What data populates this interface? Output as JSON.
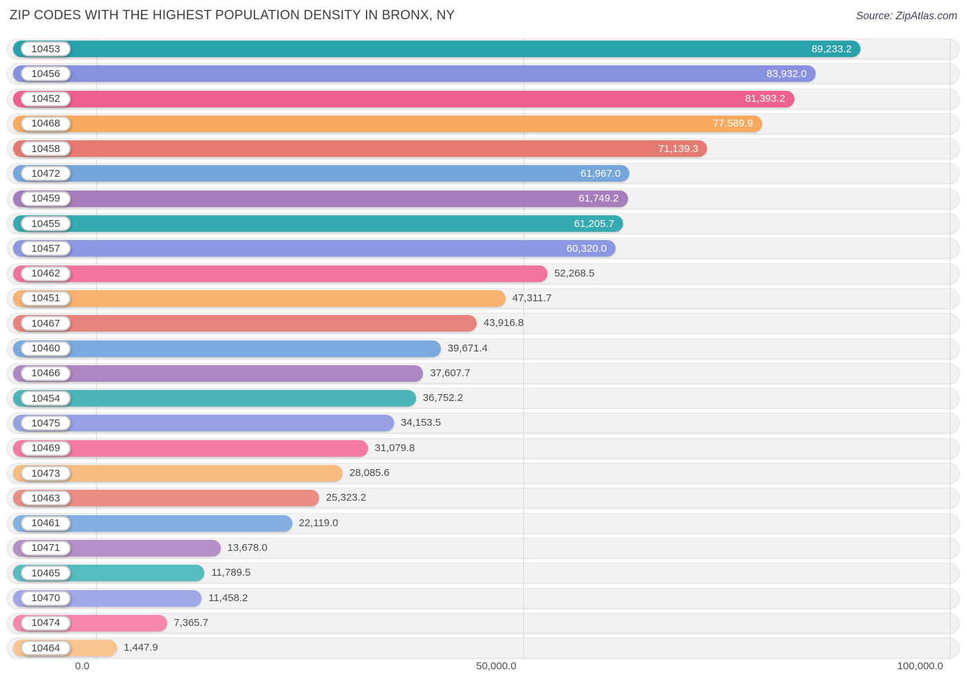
{
  "header": {
    "title": "ZIP CODES WITH THE HIGHEST POPULATION DENSITY IN BRONX, NY",
    "source": "Source: ZipAtlas.com"
  },
  "chart_data": {
    "type": "bar",
    "orientation": "horizontal",
    "title": "ZIP CODES WITH THE HIGHEST POPULATION DENSITY IN BRONX, NY",
    "xlabel": "",
    "ylabel": "",
    "xlim": [
      0,
      100000
    ],
    "grid": true,
    "legend": false,
    "x_ticks": {
      "labels": [
        "0.0",
        "50,000.0",
        "100,000.0"
      ],
      "values": [
        0,
        50000,
        100000
      ]
    },
    "categories": [
      "10453",
      "10456",
      "10452",
      "10468",
      "10458",
      "10472",
      "10459",
      "10455",
      "10457",
      "10462",
      "10451",
      "10467",
      "10460",
      "10466",
      "10454",
      "10475",
      "10469",
      "10473",
      "10463",
      "10461",
      "10471",
      "10465",
      "10470",
      "10474",
      "10464"
    ],
    "values": [
      89233.2,
      83932.0,
      81393.2,
      77589.9,
      71139.3,
      61967.0,
      61749.2,
      61205.7,
      60320.0,
      52268.5,
      47311.7,
      43916.8,
      39671.4,
      37607.7,
      36752.2,
      34153.5,
      31079.8,
      28085.6,
      25323.2,
      22119.0,
      13678.0,
      11789.5,
      11458.2,
      7365.7,
      1447.9
    ],
    "value_labels": [
      "89,233.2",
      "83,932.0",
      "81,393.2",
      "77,589.9",
      "71,139.3",
      "61,967.0",
      "61,749.2",
      "61,205.7",
      "60,320.0",
      "52,268.5",
      "47,311.7",
      "43,916.8",
      "39,671.4",
      "37,607.7",
      "36,752.2",
      "34,153.5",
      "31,079.8",
      "28,085.6",
      "25,323.2",
      "22,119.0",
      "13,678.0",
      "11,789.5",
      "11,458.2",
      "7,365.7",
      "1,447.9"
    ],
    "bar_colors": [
      "#28a2ab",
      "#8691e0",
      "#ef5f90",
      "#f7a95e",
      "#e57a72",
      "#74a6db",
      "#a77dbd",
      "#35aab1",
      "#8d98e2",
      "#f2739c",
      "#f8b26e",
      "#e8837b",
      "#7baade",
      "#ae87c2",
      "#4bb5ba",
      "#96a0e5",
      "#f47aa3",
      "#f9bc80",
      "#e98d85",
      "#83b0e1",
      "#b590c8",
      "#55bcc0",
      "#9fa8e7",
      "#f787ab",
      "#f9c691"
    ],
    "label_placement_threshold_inside": 60000
  },
  "style_colors": {
    "track_fill": "#f3f2f2",
    "track_border": "#e5e3e3",
    "gridline": "#d8d6d6",
    "value_label_inside": "#ffffff",
    "value_label_outside": "#4b4b4b",
    "pill_border": "#c9c7c7",
    "pill_text": "#3d3d3d",
    "title_text": "#3d3d3d",
    "axis_text": "#4c4c4c"
  }
}
